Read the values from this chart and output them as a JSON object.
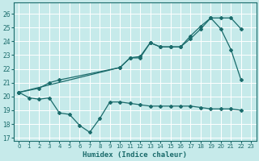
{
  "xlabel": "Humidex (Indice chaleur)",
  "xlim": [
    -0.5,
    23.5
  ],
  "ylim": [
    16.8,
    26.8
  ],
  "yticks": [
    17,
    18,
    19,
    20,
    21,
    22,
    23,
    24,
    25,
    26
  ],
  "xticks": [
    0,
    1,
    2,
    3,
    4,
    5,
    6,
    7,
    8,
    9,
    10,
    11,
    12,
    13,
    14,
    15,
    16,
    17,
    18,
    19,
    20,
    21,
    22,
    23
  ],
  "bg_color": "#c6eaea",
  "grid_color": "#b0d8d8",
  "line_color": "#1a6b6b",
  "line_low_x": [
    0,
    1,
    2,
    3,
    4,
    5,
    6,
    7,
    8,
    9,
    10,
    11,
    12,
    13,
    14,
    15,
    16,
    17,
    18,
    19,
    20,
    21,
    22
  ],
  "line_low_y": [
    20.3,
    19.9,
    19.8,
    19.9,
    18.8,
    18.7,
    17.9,
    17.4,
    18.4,
    19.6,
    19.6,
    19.5,
    19.4,
    19.3,
    19.3,
    19.3,
    19.3,
    19.3,
    19.2,
    19.1,
    19.1,
    19.1,
    19.0
  ],
  "line_mid_x": [
    0,
    2,
    3,
    4,
    10,
    11,
    12,
    13,
    14,
    15,
    16,
    17,
    18,
    19,
    20,
    21,
    22
  ],
  "line_mid_y": [
    20.3,
    20.6,
    21.0,
    21.2,
    22.1,
    22.8,
    22.8,
    23.9,
    23.6,
    23.6,
    23.6,
    24.2,
    24.9,
    25.7,
    25.7,
    25.7,
    24.9
  ],
  "line_high_x": [
    0,
    10,
    11,
    12,
    13,
    14,
    15,
    16,
    17,
    18,
    19,
    20,
    21,
    22
  ],
  "line_high_y": [
    20.3,
    22.1,
    22.8,
    22.9,
    23.9,
    23.6,
    23.6,
    23.6,
    24.4,
    25.1,
    25.7,
    24.9,
    23.4,
    21.2
  ]
}
